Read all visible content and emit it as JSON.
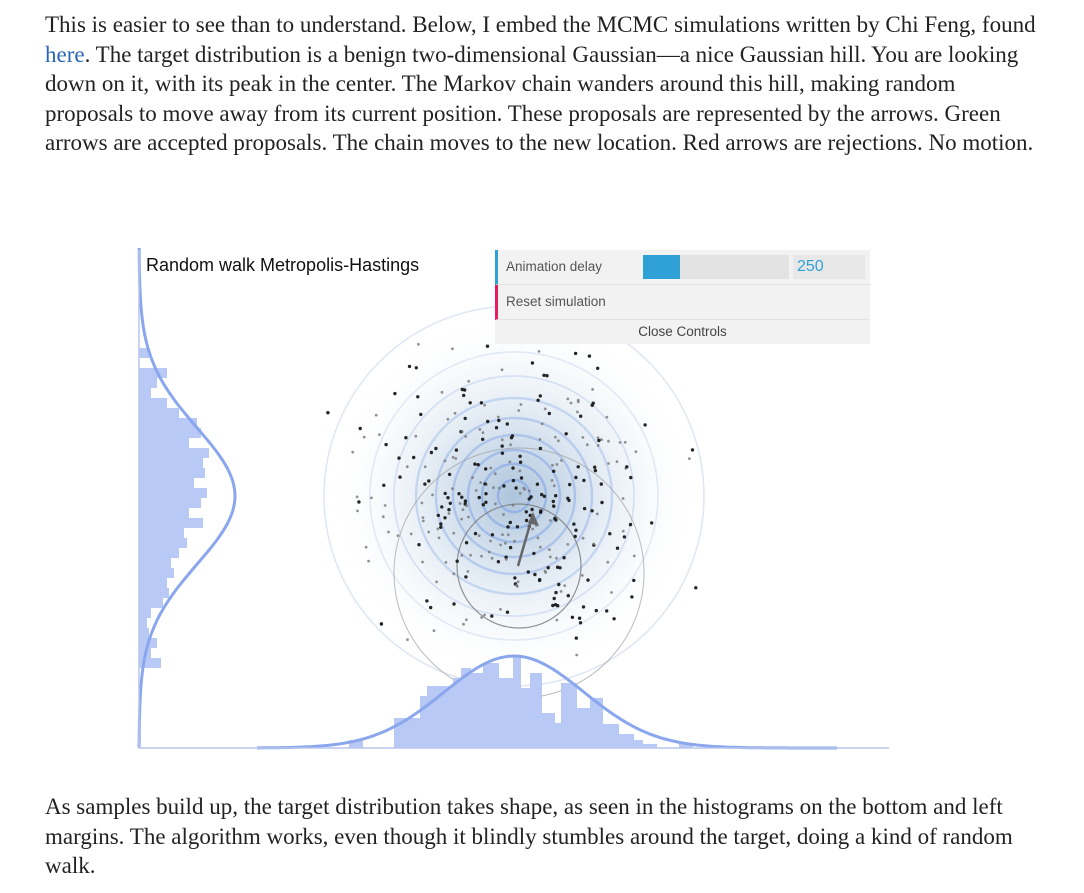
{
  "article": {
    "paragraph1": {
      "before_link": "This is easier to see than to understand. Below, I embed the MCMC simulations written by Chi Feng, found ",
      "link_text": "here",
      "after_link": ". The target distribution is a benign two-dimensional Gaussian—a nice Gaussian hill. You are looking down on it, with its peak in the center. The Markov chain wanders around this hill, making random proposals to move away from its current position. These proposals are represented by the arrows. Green arrows are accepted proposals. The chain moves to the new location. Red arrows are rejections. No motion."
    },
    "paragraph2": "As samples build up, the target distribution takes shape, as seen in the histograms on the bottom and left margins. The algorithm works, even though it blindly stumbles around the target, doing a kind of random walk."
  },
  "simulation": {
    "title": "Random walk Metropolis-Hastings",
    "controls": {
      "delay_label": "Animation delay",
      "delay_value": "250",
      "delay_fraction": 0.25,
      "reset_label": "Reset simulation",
      "close_label": "Close Controls"
    },
    "colors": {
      "histogram": "#b9c9f5",
      "density_curve": "#8aa7ee",
      "contour": "#8aa9e6",
      "hill": "#bcd0e4",
      "sample": "#1a1a1a",
      "proposal_arrow": "#666666",
      "slider": "#2fa1d6",
      "reset_accent": "#e61d5f"
    },
    "icons": {
      "proposal": "arrow-icon"
    }
  }
}
